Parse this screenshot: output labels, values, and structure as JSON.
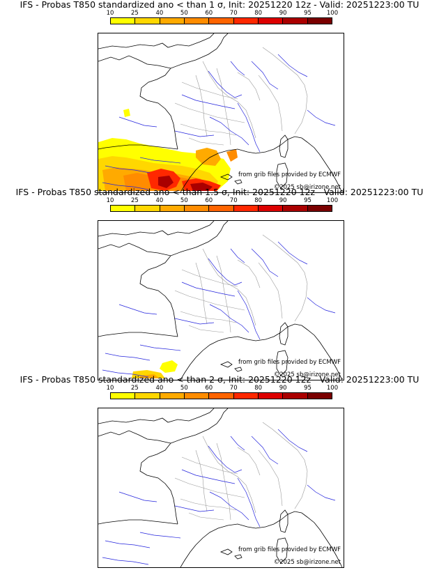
{
  "colorbar": {
    "ticks": [
      "10",
      "25",
      "40",
      "50",
      "60",
      "70",
      "80",
      "90",
      "95",
      "100"
    ],
    "colors": [
      "#ffff00",
      "#ffd700",
      "#ffaa00",
      "#ff8c00",
      "#ff6400",
      "#ff2800",
      "#dc0000",
      "#aa0000",
      "#7a0000"
    ]
  },
  "colors": {
    "coast": "#000000",
    "river": "#2222dd",
    "border": "#999999"
  },
  "panels": [
    {
      "title": "IFS - Probas T850  standardized ano < than 1 σ, Init: 20251220 12z - Valid: 20251223:00 TU",
      "credit_source": "from grib files provided by ECMWF",
      "credit_copyright": "©2025 sb@irizone.net",
      "probability_overlay": "wide"
    },
    {
      "title": "IFS - Probas T850  standardized ano < than 1.5 σ, Init: 20251220 12z - Valid: 20251223:00 TU",
      "credit_source": "from grib files provided by ECMWF",
      "credit_copyright": "©2025 sb@irizone.net",
      "probability_overlay": "small"
    },
    {
      "title": "IFS - Probas T850  standardized ano < than 2 σ, Init: 20251220 12z - Valid: 20251223:00 TU",
      "credit_source": "from grib files provided by ECMWF",
      "credit_copyright": "©2025 sb@irizone.net",
      "probability_overlay": "none"
    }
  ]
}
